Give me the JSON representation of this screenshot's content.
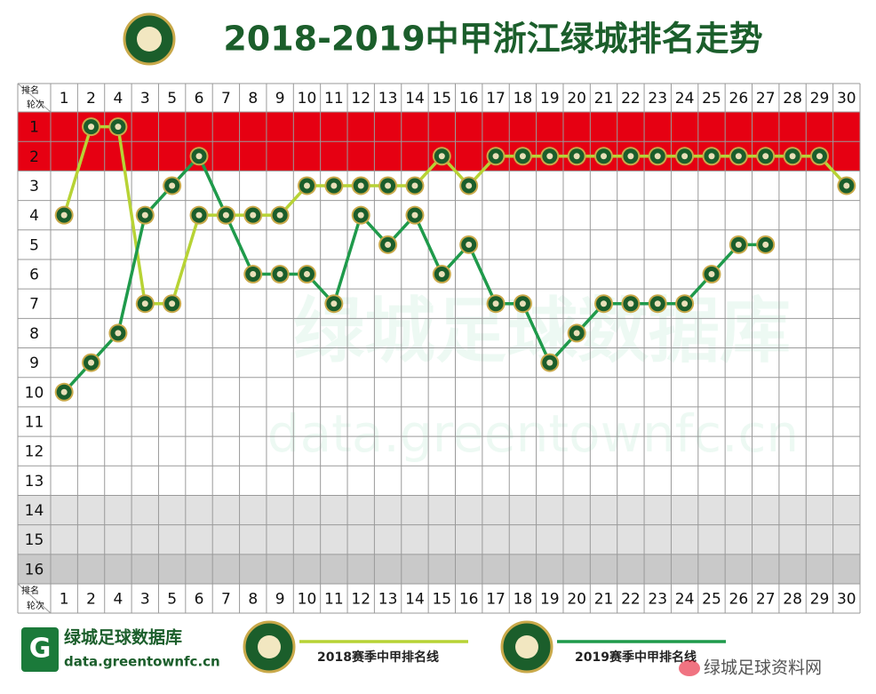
{
  "chart_data": {
    "type": "line",
    "title": "2018-2019中甲浙江绿城排名走势",
    "corner_label": [
      "排名",
      "轮次"
    ],
    "categories": [
      "1",
      "2",
      "4",
      "3",
      "5",
      "6",
      "7",
      "8",
      "9",
      "10",
      "11",
      "12",
      "13",
      "14",
      "15",
      "16",
      "17",
      "18",
      "19",
      "20",
      "21",
      "22",
      "23",
      "24",
      "25",
      "26",
      "27",
      "28",
      "29",
      "30"
    ],
    "ylim": [
      16.5,
      0.5
    ],
    "yticks": [
      1,
      2,
      3,
      4,
      5,
      6,
      7,
      8,
      9,
      10,
      11,
      12,
      13,
      14,
      15,
      16
    ],
    "series": [
      {
        "name": "2018赛季中甲排名线",
        "color": "#b7d335",
        "values": [
          4,
          1,
          1,
          7,
          7,
          4,
          4,
          4,
          4,
          3,
          3,
          3,
          3,
          3,
          2,
          3,
          2,
          2,
          2,
          2,
          2,
          2,
          2,
          2,
          2,
          2,
          2,
          2,
          2,
          3
        ]
      },
      {
        "name": "2019赛季中甲排名线",
        "color": "#1f9a4b",
        "values": [
          10,
          9,
          8,
          4,
          3,
          2,
          4,
          6,
          6,
          6,
          7,
          4,
          5,
          4,
          6,
          5,
          7,
          7,
          9,
          8,
          7,
          7,
          7,
          7,
          6,
          5,
          5,
          null,
          null,
          null
        ]
      }
    ],
    "footer": {
      "brand": "绿城足球数据库",
      "url": "data.greentownfc.cn",
      "weibo": "绿城足球资料网"
    },
    "watermark": {
      "brand": "绿城足球数据库",
      "url": "data.greentownfc.cn"
    }
  }
}
